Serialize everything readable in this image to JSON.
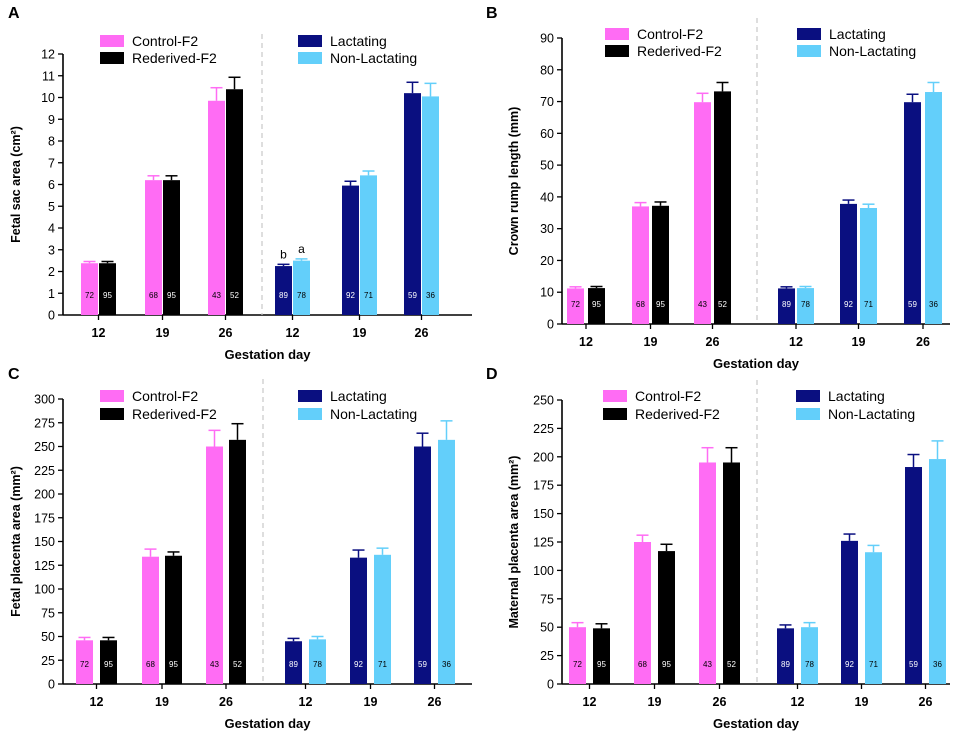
{
  "colors": {
    "control": "#FF6CF4",
    "rederived": "#000000",
    "lactating": "#0A0F80",
    "nonlactating": "#63CFFA",
    "axis": "#000000",
    "divider": "#C8C8C8"
  },
  "chart_data": [
    {
      "panel": "A",
      "type": "bar",
      "title": "",
      "ylabel": "Fetal sac area (cm²)",
      "xlabel": "Gestation day",
      "ylim": [
        0,
        12
      ],
      "yticks": [
        0,
        1,
        2,
        3,
        4,
        5,
        6,
        7,
        8,
        9,
        10,
        11,
        12
      ],
      "categories": [
        "12",
        "19",
        "26",
        "12",
        "19",
        "26"
      ],
      "legend": [
        {
          "name": "Control-F2",
          "color_key": "control"
        },
        {
          "name": "Rederived-F2",
          "color_key": "rederived"
        },
        {
          "name": "Lactating",
          "color_key": "lactating"
        },
        {
          "name": "Non-Lactating",
          "color_key": "nonlactating"
        }
      ],
      "groups": [
        {
          "category": "12",
          "bars": [
            {
              "series": "Control-F2",
              "color_key": "control",
              "value": 2.38,
              "error": 0.08,
              "n": "72"
            },
            {
              "series": "Rederived-F2",
              "color_key": "rederived",
              "value": 2.38,
              "error": 0.08,
              "n": "95"
            }
          ]
        },
        {
          "category": "19",
          "bars": [
            {
              "series": "Control-F2",
              "color_key": "control",
              "value": 6.2,
              "error": 0.2,
              "n": "68"
            },
            {
              "series": "Rederived-F2",
              "color_key": "rederived",
              "value": 6.2,
              "error": 0.2,
              "n": "95"
            }
          ]
        },
        {
          "category": "26",
          "bars": [
            {
              "series": "Control-F2",
              "color_key": "control",
              "value": 9.85,
              "error": 0.6,
              "n": "43"
            },
            {
              "series": "Rederived-F2",
              "color_key": "rederived",
              "value": 10.38,
              "error": 0.55,
              "n": "52"
            }
          ]
        },
        {
          "category": "12",
          "bars": [
            {
              "series": "Lactating",
              "color_key": "lactating",
              "value": 2.25,
              "error": 0.08,
              "n": "89",
              "label": "b"
            },
            {
              "series": "Non-Lactating",
              "color_key": "nonlactating",
              "value": 2.5,
              "error": 0.08,
              "n": "78",
              "label": "a"
            }
          ]
        },
        {
          "category": "19",
          "bars": [
            {
              "series": "Lactating",
              "color_key": "lactating",
              "value": 5.95,
              "error": 0.2,
              "n": "92"
            },
            {
              "series": "Non-Lactating",
              "color_key": "nonlactating",
              "value": 6.42,
              "error": 0.2,
              "n": "71"
            }
          ]
        },
        {
          "category": "26",
          "bars": [
            {
              "series": "Lactating",
              "color_key": "lactating",
              "value": 10.2,
              "error": 0.5,
              "n": "59"
            },
            {
              "series": "Non-Lactating",
              "color_key": "nonlactating",
              "value": 10.05,
              "error": 0.6,
              "n": "36"
            }
          ]
        }
      ]
    },
    {
      "panel": "B",
      "type": "bar",
      "title": "",
      "ylabel": "Crown rump length (mm)",
      "xlabel": "Gestation day",
      "ylim": [
        0,
        90
      ],
      "yticks": [
        0,
        10,
        20,
        30,
        40,
        50,
        60,
        70,
        80,
        90
      ],
      "categories": [
        "12",
        "19",
        "26",
        "12",
        "19",
        "26"
      ],
      "legend": [
        {
          "name": "Control-F2",
          "color_key": "control"
        },
        {
          "name": "Rederived-F2",
          "color_key": "rederived"
        },
        {
          "name": "Lactating",
          "color_key": "lactating"
        },
        {
          "name": "Non-Lactating",
          "color_key": "nonlactating"
        }
      ],
      "groups": [
        {
          "category": "12",
          "bars": [
            {
              "series": "Control-F2",
              "color_key": "control",
              "value": 11.2,
              "error": 0.5,
              "n": "72"
            },
            {
              "series": "Rederived-F2",
              "color_key": "rederived",
              "value": 11.3,
              "error": 0.5,
              "n": "95"
            }
          ]
        },
        {
          "category": "19",
          "bars": [
            {
              "series": "Control-F2",
              "color_key": "control",
              "value": 37.0,
              "error": 1.2,
              "n": "68"
            },
            {
              "series": "Rederived-F2",
              "color_key": "rederived",
              "value": 37.2,
              "error": 1.2,
              "n": "95"
            }
          ]
        },
        {
          "category": "26",
          "bars": [
            {
              "series": "Control-F2",
              "color_key": "control",
              "value": 69.8,
              "error": 2.8,
              "n": "43"
            },
            {
              "series": "Rederived-F2",
              "color_key": "rederived",
              "value": 73.2,
              "error": 2.8,
              "n": "52"
            }
          ]
        },
        {
          "category": "12",
          "bars": [
            {
              "series": "Lactating",
              "color_key": "lactating",
              "value": 11.2,
              "error": 0.5,
              "n": "89"
            },
            {
              "series": "Non-Lactating",
              "color_key": "nonlactating",
              "value": 11.3,
              "error": 0.5,
              "n": "78"
            }
          ]
        },
        {
          "category": "19",
          "bars": [
            {
              "series": "Lactating",
              "color_key": "lactating",
              "value": 37.8,
              "error": 1.2,
              "n": "92"
            },
            {
              "series": "Non-Lactating",
              "color_key": "nonlactating",
              "value": 36.5,
              "error": 1.2,
              "n": "71"
            }
          ]
        },
        {
          "category": "26",
          "bars": [
            {
              "series": "Lactating",
              "color_key": "lactating",
              "value": 69.8,
              "error": 2.5,
              "n": "59"
            },
            {
              "series": "Non-Lactating",
              "color_key": "nonlactating",
              "value": 73.0,
              "error": 3.0,
              "n": "36"
            }
          ]
        }
      ]
    },
    {
      "panel": "C",
      "type": "bar",
      "title": "",
      "ylabel": "Fetal placenta area (mm²)",
      "xlabel": "Gestation day",
      "ylim": [
        0,
        300
      ],
      "yticks": [
        0,
        25,
        50,
        75,
        100,
        125,
        150,
        175,
        200,
        225,
        250,
        275,
        300
      ],
      "categories": [
        "12",
        "19",
        "26",
        "12",
        "19",
        "26"
      ],
      "legend": [
        {
          "name": "Control-F2",
          "color_key": "control"
        },
        {
          "name": "Rederived-F2",
          "color_key": "rederived"
        },
        {
          "name": "Lactating",
          "color_key": "lactating"
        },
        {
          "name": "Non-Lactating",
          "color_key": "nonlactating"
        }
      ],
      "groups": [
        {
          "category": "12",
          "bars": [
            {
              "series": "Control-F2",
              "color_key": "control",
              "value": 46,
              "error": 3,
              "n": "72"
            },
            {
              "series": "Rederived-F2",
              "color_key": "rederived",
              "value": 46,
              "error": 3,
              "n": "95"
            }
          ]
        },
        {
          "category": "19",
          "bars": [
            {
              "series": "Control-F2",
              "color_key": "control",
              "value": 134,
              "error": 8,
              "n": "68"
            },
            {
              "series": "Rederived-F2",
              "color_key": "rederived",
              "value": 135,
              "error": 4,
              "n": "95"
            }
          ]
        },
        {
          "category": "26",
          "bars": [
            {
              "series": "Control-F2",
              "color_key": "control",
              "value": 250,
              "error": 17,
              "n": "43"
            },
            {
              "series": "Rederived-F2",
              "color_key": "rederived",
              "value": 257,
              "error": 17,
              "n": "52"
            }
          ]
        },
        {
          "category": "12",
          "bars": [
            {
              "series": "Lactating",
              "color_key": "lactating",
              "value": 45,
              "error": 3,
              "n": "89"
            },
            {
              "series": "Non-Lactating",
              "color_key": "nonlactating",
              "value": 47,
              "error": 3,
              "n": "78"
            }
          ]
        },
        {
          "category": "19",
          "bars": [
            {
              "series": "Lactating",
              "color_key": "lactating",
              "value": 133,
              "error": 8,
              "n": "92"
            },
            {
              "series": "Non-Lactating",
              "color_key": "nonlactating",
              "value": 136,
              "error": 7,
              "n": "71"
            }
          ]
        },
        {
          "category": "26",
          "bars": [
            {
              "series": "Lactating",
              "color_key": "lactating",
              "value": 250,
              "error": 14,
              "n": "59"
            },
            {
              "series": "Non-Lactating",
              "color_key": "nonlactating",
              "value": 257,
              "error": 20,
              "n": "36"
            }
          ]
        }
      ]
    },
    {
      "panel": "D",
      "type": "bar",
      "title": "",
      "ylabel": "Maternal placenta area (mm²)",
      "xlabel": "Gestation day",
      "ylim": [
        0,
        250
      ],
      "yticks": [
        0,
        25,
        50,
        75,
        100,
        125,
        150,
        175,
        200,
        225,
        250
      ],
      "categories": [
        "12",
        "19",
        "26",
        "12",
        "19",
        "26"
      ],
      "legend": [
        {
          "name": "Control-F2",
          "color_key": "control"
        },
        {
          "name": "Rederived-F2",
          "color_key": "rederived"
        },
        {
          "name": "Lactating",
          "color_key": "lactating"
        },
        {
          "name": "Non-Lactating",
          "color_key": "nonlactating"
        }
      ],
      "groups": [
        {
          "category": "12",
          "bars": [
            {
              "series": "Control-F2",
              "color_key": "control",
              "value": 50,
              "error": 4,
              "n": "72"
            },
            {
              "series": "Rederived-F2",
              "color_key": "rederived",
              "value": 49,
              "error": 4,
              "n": "95"
            }
          ]
        },
        {
          "category": "19",
          "bars": [
            {
              "series": "Control-F2",
              "color_key": "control",
              "value": 125,
              "error": 6,
              "n": "68"
            },
            {
              "series": "Rederived-F2",
              "color_key": "rederived",
              "value": 117,
              "error": 6,
              "n": "95"
            }
          ]
        },
        {
          "category": "26",
          "bars": [
            {
              "series": "Control-F2",
              "color_key": "control",
              "value": 195,
              "error": 13,
              "n": "43"
            },
            {
              "series": "Rederived-F2",
              "color_key": "rederived",
              "value": 195,
              "error": 13,
              "n": "52"
            }
          ]
        },
        {
          "category": "12",
          "bars": [
            {
              "series": "Lactating",
              "color_key": "lactating",
              "value": 49,
              "error": 3,
              "n": "89"
            },
            {
              "series": "Non-Lactating",
              "color_key": "nonlactating",
              "value": 50,
              "error": 4,
              "n": "78"
            }
          ]
        },
        {
          "category": "19",
          "bars": [
            {
              "series": "Lactating",
              "color_key": "lactating",
              "value": 126,
              "error": 6,
              "n": "92"
            },
            {
              "series": "Non-Lactating",
              "color_key": "nonlactating",
              "value": 116,
              "error": 6,
              "n": "71"
            }
          ]
        },
        {
          "category": "26",
          "bars": [
            {
              "series": "Lactating",
              "color_key": "lactating",
              "value": 191,
              "error": 11,
              "n": "59"
            },
            {
              "series": "Non-Lactating",
              "color_key": "nonlactating",
              "value": 198,
              "error": 16,
              "n": "36"
            }
          ]
        }
      ]
    }
  ]
}
